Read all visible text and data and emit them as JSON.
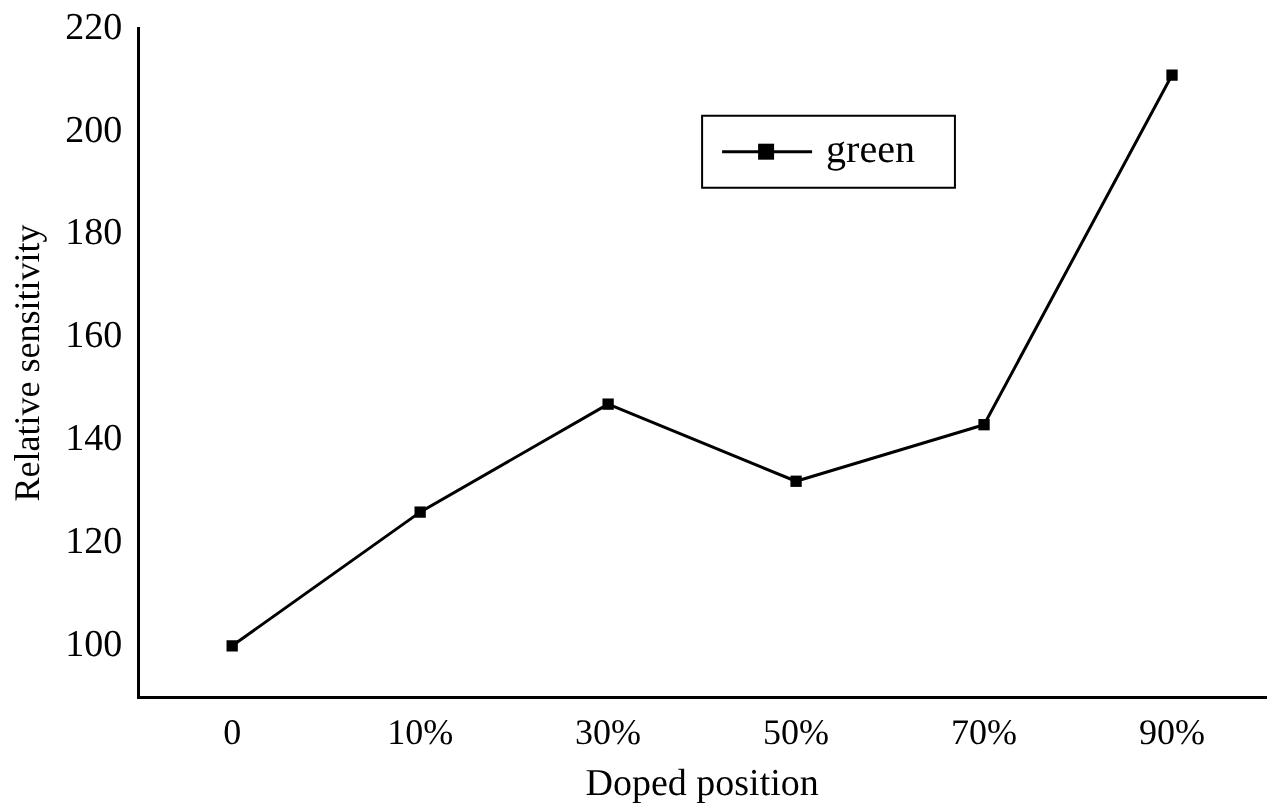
{
  "chart_data": {
    "type": "line",
    "xlabel": "Doped position",
    "ylabel": "Relative sensitivity",
    "categories": [
      "0",
      "10%",
      "30%",
      "50%",
      "70%",
      "90%"
    ],
    "series": [
      {
        "name": "green",
        "color": "#000000",
        "values": [
          100,
          126,
          147,
          132,
          143,
          211
        ]
      }
    ],
    "ylim": [
      90,
      220
    ],
    "yticks": [
      100,
      120,
      140,
      160,
      180,
      200,
      220
    ],
    "grid": false,
    "legend": "top right",
    "marker": "square",
    "line_style": "solid"
  }
}
